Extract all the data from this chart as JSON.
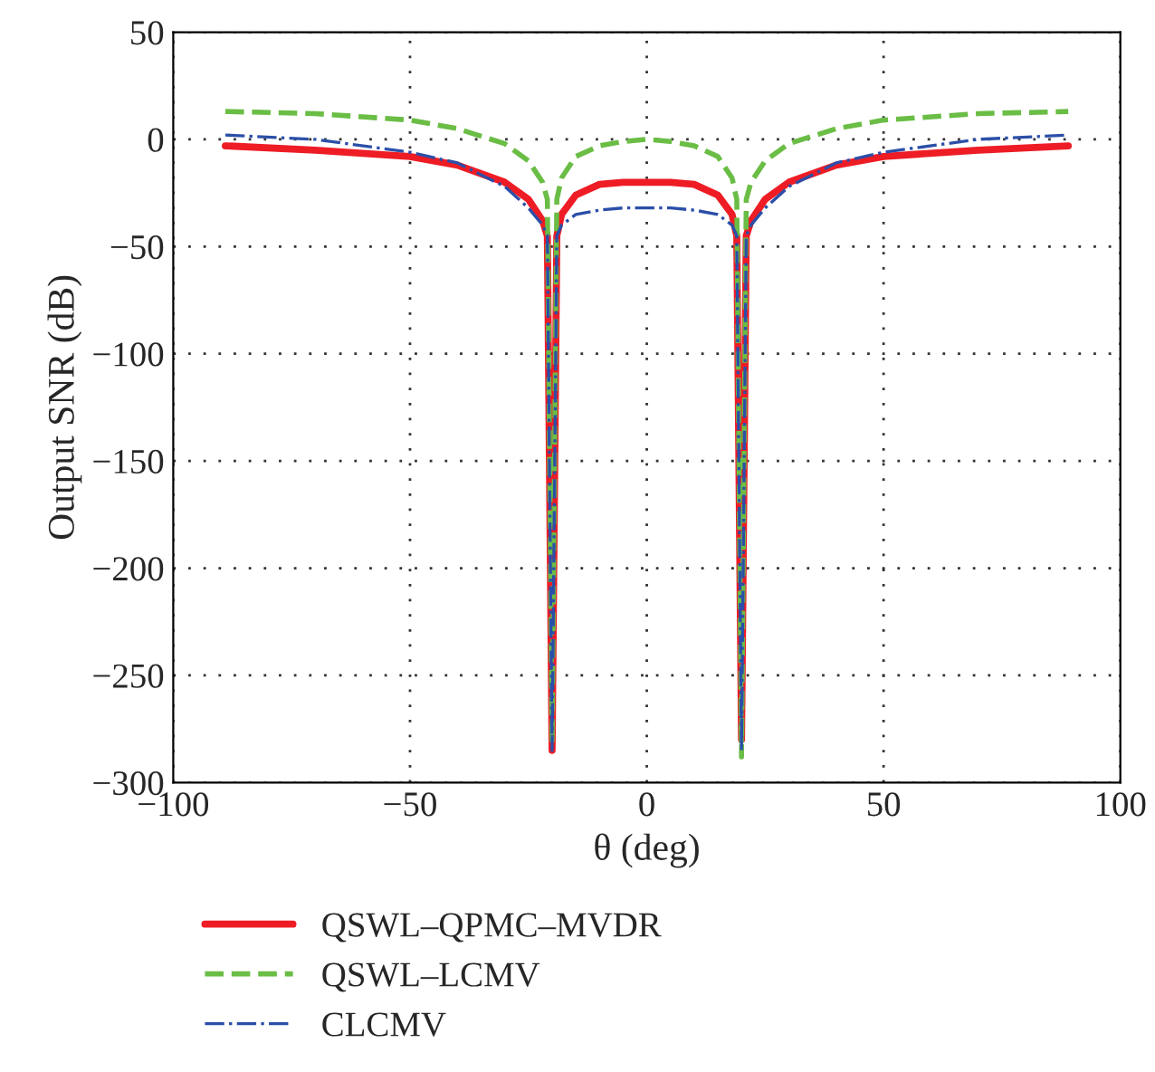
{
  "chart_data": {
    "type": "line",
    "xlabel": "θ (deg)",
    "ylabel": "Output SNR (dB)",
    "xlim": [
      -100,
      100
    ],
    "ylim": [
      -300,
      50
    ],
    "xticks": [
      -100,
      -50,
      0,
      50,
      100
    ],
    "yticks": [
      -300,
      -250,
      -200,
      -150,
      -100,
      -50,
      0,
      50
    ],
    "grid": true,
    "legend": "bottom",
    "marker": "none",
    "x": [
      -89,
      -70,
      -50,
      -40,
      -30,
      -25,
      -22,
      -21,
      -20,
      -19,
      -18,
      -15,
      -10,
      -5,
      0,
      5,
      10,
      15,
      18,
      19,
      20,
      21,
      22,
      25,
      30,
      40,
      50,
      70,
      89
    ],
    "series": [
      {
        "name": "QSWL–QPMC–MVDR",
        "color": "#ee1c25",
        "line_style": "solid",
        "values": [
          -3,
          -5,
          -8,
          -12,
          -20,
          -28,
          -38,
          -45,
          -285,
          -45,
          -35,
          -26,
          -21,
          -20,
          -20,
          -20,
          -21,
          -26,
          -35,
          -45,
          -280,
          -45,
          -38,
          -28,
          -20,
          -12,
          -8,
          -5,
          -3
        ]
      },
      {
        "name": "QSWL–LCMV",
        "color": "#6abd45",
        "line_style": "dashed",
        "values": [
          13,
          12,
          9,
          5,
          -2,
          -10,
          -20,
          -28,
          -282,
          -28,
          -18,
          -8,
          -3,
          -1,
          0,
          -1,
          -3,
          -8,
          -18,
          -28,
          -288,
          -28,
          -20,
          -10,
          -2,
          5,
          9,
          12,
          13
        ]
      },
      {
        "name": "CLCMV",
        "color": "#2b4fa8",
        "line_style": "dashdot",
        "values": [
          2,
          0,
          -6,
          -11,
          -22,
          -32,
          -40,
          -45,
          -285,
          -45,
          -40,
          -35,
          -33,
          -32,
          -32,
          -32,
          -33,
          -35,
          -40,
          -45,
          -285,
          -45,
          -40,
          -32,
          -22,
          -11,
          -6,
          0,
          2
        ]
      }
    ]
  }
}
